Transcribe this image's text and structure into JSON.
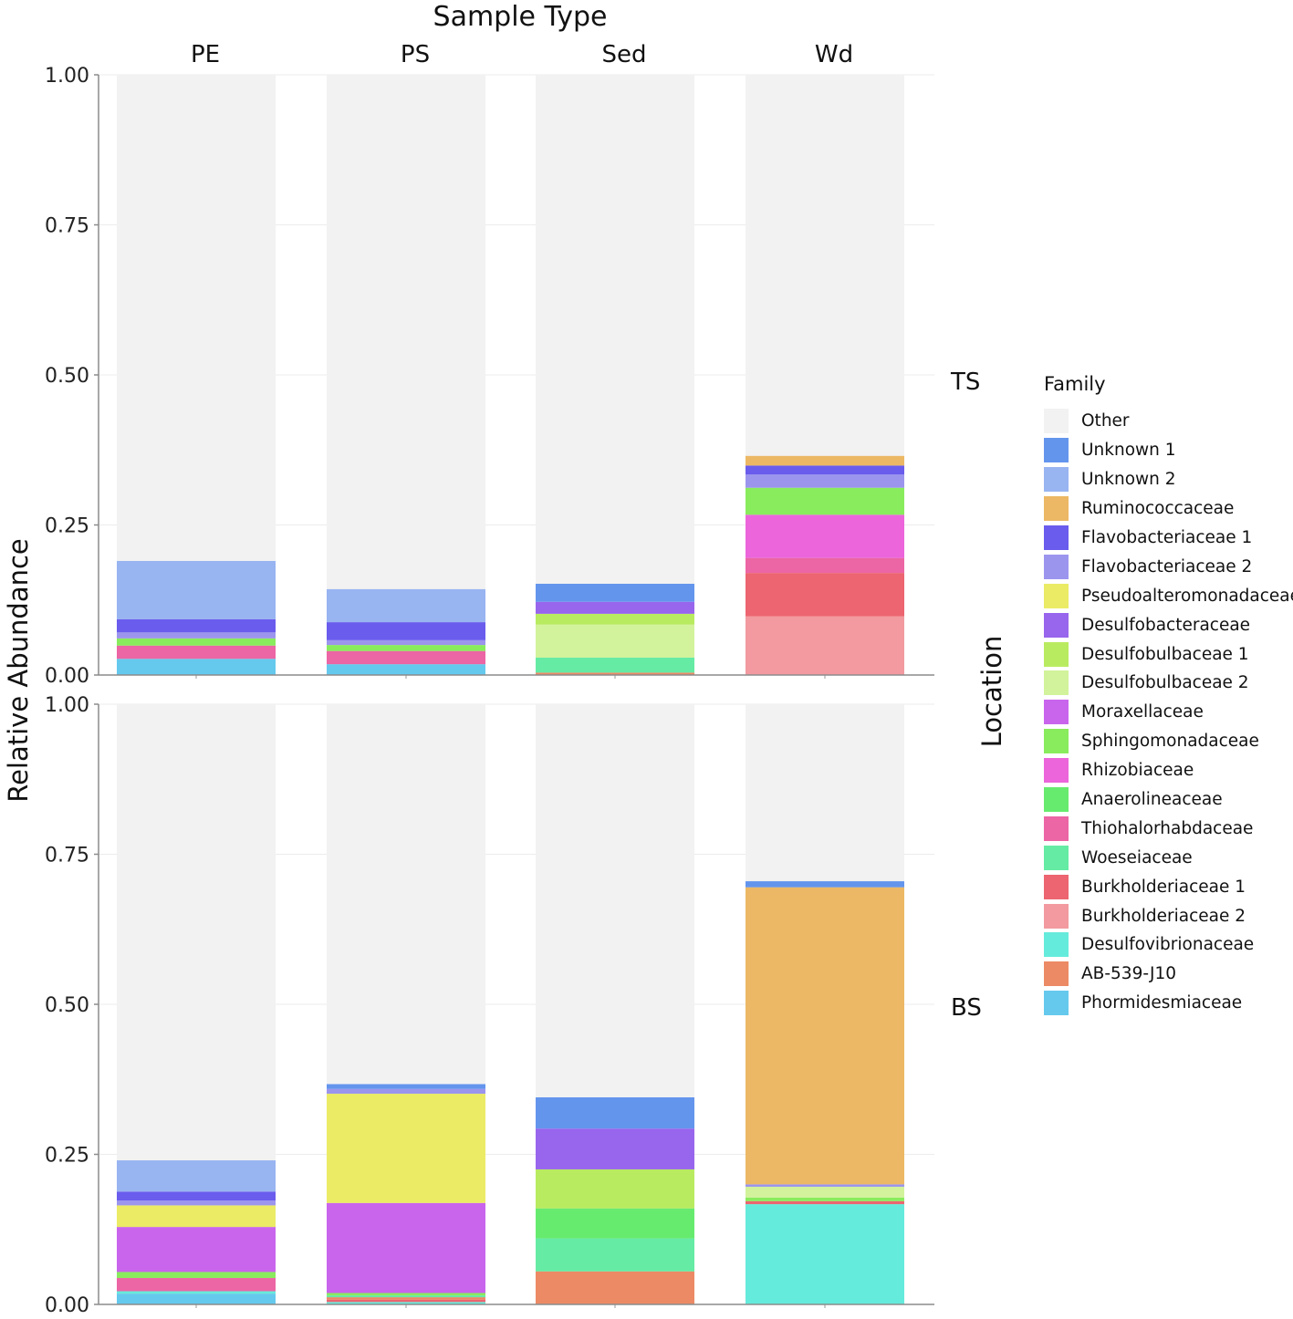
{
  "chart_data": {
    "type": "bar",
    "stacked": true,
    "facet_col_title": "Sample Type",
    "facet_row_title": "Location",
    "ylabel": "Relative Abundance",
    "ylim": [
      0,
      1
    ],
    "yticks": [
      "0.00",
      "0.25",
      "0.50",
      "0.75",
      "1.00"
    ],
    "categories": [
      "PE",
      "PS",
      "Sed",
      "Wd"
    ],
    "rows": [
      "TS",
      "BS"
    ],
    "legend_title": "Family",
    "families": [
      {
        "name": "Other",
        "color": "#f2f2f2"
      },
      {
        "name": "Unknown 1",
        "color": "#6495ed"
      },
      {
        "name": "Unknown 2",
        "color": "#98b4f1"
      },
      {
        "name": "Ruminococcaceae",
        "color": "#ecb865"
      },
      {
        "name": "Flavobacteriaceae 1",
        "color": "#6a5ced"
      },
      {
        "name": "Flavobacteriaceae 2",
        "color": "#9c95ee"
      },
      {
        "name": "Pseudoalteromonadaceae",
        "color": "#ebeb66"
      },
      {
        "name": "Desulfobacteraceae",
        "color": "#9865ed"
      },
      {
        "name": "Desulfobulbaceae 1",
        "color": "#b9eb60"
      },
      {
        "name": "Desulfobulbaceae 2",
        "color": "#d2f39b"
      },
      {
        "name": "Moraxellaceae",
        "color": "#c965ed"
      },
      {
        "name": "Sphingomonadaceae",
        "color": "#89ec5d"
      },
      {
        "name": "Rhizobiaceae",
        "color": "#ec65db"
      },
      {
        "name": "Anaerolineaceae",
        "color": "#67eb6e"
      },
      {
        "name": "Thiohalorhabdaceae",
        "color": "#ec65a4"
      },
      {
        "name": "Woeseiaceae",
        "color": "#65eba4"
      },
      {
        "name": "Burkholderiaceae 1",
        "color": "#ec6570"
      },
      {
        "name": "Burkholderiaceae 2",
        "color": "#f29aa0"
      },
      {
        "name": "Desulfovibrionaceae",
        "color": "#65ebdb"
      },
      {
        "name": "AB-539-J10",
        "color": "#ec8a65"
      },
      {
        "name": "Phormidesmiaceae",
        "color": "#65c9ed"
      }
    ],
    "panels": {
      "TS": {
        "PE": {
          "Phormidesmiaceae": 0.027,
          "Thiohalorhabdaceae": 0.022,
          "Sphingomonadaceae": 0.012,
          "Flavobacteriaceae 2": 0.01,
          "Flavobacteriaceae 1": 0.022,
          "Unknown 2": 0.097
        },
        "PS": {
          "Phormidesmiaceae": 0.018,
          "Thiohalorhabdaceae": 0.022,
          "Sphingomonadaceae": 0.01,
          "Flavobacteriaceae 2": 0.008,
          "Flavobacteriaceae 1": 0.03,
          "Unknown 2": 0.055
        },
        "Sed": {
          "AB-539-J10": 0.004,
          "Woeseiaceae": 0.025,
          "Desulfobulbaceae 2": 0.055,
          "Desulfobulbaceae 1": 0.018,
          "Desulfobacteraceae": 0.02,
          "Unknown 1": 0.03
        },
        "Wd": {
          "Burkholderiaceae 2": 0.098,
          "Burkholderiaceae 1": 0.072,
          "Thiohalorhabdaceae": 0.025,
          "Rhizobiaceae": 0.072,
          "Sphingomonadaceae": 0.045,
          "Flavobacteriaceae 2": 0.022,
          "Flavobacteriaceae 1": 0.015,
          "Ruminococcaceae": 0.016
        }
      },
      "BS": {
        "PE": {
          "Phormidesmiaceae": 0.018,
          "Desulfovibrionaceae": 0.004,
          "Thiohalorhabdaceae": 0.022,
          "Sphingomonadaceae": 0.01,
          "Moraxellaceae": 0.075,
          "Pseudoalteromonadaceae": 0.036,
          "Flavobacteriaceae 2": 0.008,
          "Flavobacteriaceae 1": 0.015,
          "Unknown 2": 0.052
        },
        "PS": {
          "Desulfovibrionaceae": 0.004,
          "Burkholderiaceae 1": 0.004,
          "AB-539-J10": 0.004,
          "Woeseiaceae": 0.003,
          "Sphingomonadaceae": 0.004,
          "Moraxellaceae": 0.15,
          "Pseudoalteromonadaceae": 0.182,
          "Flavobacteriaceae 2": 0.008,
          "Unknown 1": 0.008
        },
        "Sed": {
          "AB-539-J10": 0.055,
          "Woeseiaceae": 0.055,
          "Anaerolineaceae": 0.05,
          "Desulfobulbaceae 1": 0.065,
          "Desulfobacteraceae": 0.068,
          "Unknown 1": 0.052
        },
        "Wd": {
          "Desulfovibrionaceae": 0.167,
          "Burkholderiaceae 1": 0.005,
          "Sphingomonadaceae": 0.006,
          "Desulfobulbaceae 2": 0.018,
          "Flavobacteriaceae 2": 0.004,
          "Ruminococcaceae": 0.495,
          "Unknown 1": 0.01
        }
      }
    }
  }
}
